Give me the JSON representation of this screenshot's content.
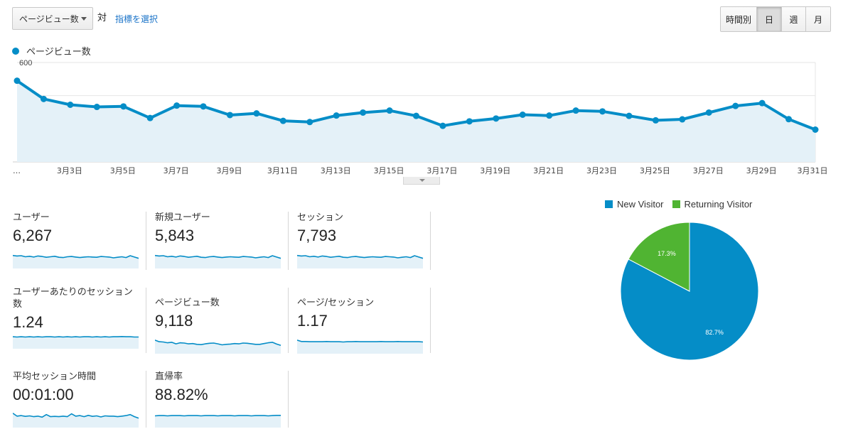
{
  "controls": {
    "metric_select": "ページビュー数",
    "vs_label": "対",
    "select_metric_link": "指標を選択",
    "granularity": [
      {
        "label": "時間別",
        "active": false
      },
      {
        "label": "日",
        "active": true
      },
      {
        "label": "週",
        "active": false
      },
      {
        "label": "月",
        "active": false
      }
    ]
  },
  "legend": {
    "label": "ページビュー数",
    "color": "#058dc7"
  },
  "chart_data": [
    {
      "type": "area",
      "series": [
        {
          "name": "ページビュー数",
          "color": "#058dc7",
          "values": [
            490,
            380,
            345,
            332,
            335,
            265,
            340,
            335,
            283,
            293,
            248,
            241,
            280,
            298,
            310,
            278,
            218,
            245,
            262,
            285,
            280,
            310,
            305,
            278,
            251,
            257,
            298,
            338,
            355,
            258,
            195
          ]
        }
      ],
      "x": [
        "3月1日",
        "3月2日",
        "3月3日",
        "3月4日",
        "3月5日",
        "3月6日",
        "3月7日",
        "3月8日",
        "3月9日",
        "3月10日",
        "3月11日",
        "3月12日",
        "3月13日",
        "3月14日",
        "3月15日",
        "3月16日",
        "3月17日",
        "3月18日",
        "3月19日",
        "3月20日",
        "3月21日",
        "3月22日",
        "3月23日",
        "3月24日",
        "3月25日",
        "3月26日",
        "3月27日",
        "3月28日",
        "3月29日",
        "3月30日",
        "3月31日"
      ],
      "x_tick_labels": [
        "…",
        "3月3日",
        "3月5日",
        "3月7日",
        "3月9日",
        "3月11日",
        "3月13日",
        "3月15日",
        "3月17日",
        "3月19日",
        "3月21日",
        "3月23日",
        "3月25日",
        "3月27日",
        "3月29日",
        "3月31日"
      ],
      "y_ticks": [
        "600",
        "400",
        "200"
      ],
      "ylim": [
        0,
        600
      ],
      "grid": true
    },
    {
      "type": "pie",
      "categories": [
        "New Visitor",
        "Returning Visitor"
      ],
      "values": [
        82.7,
        17.3
      ],
      "labels": [
        "82.7%",
        "17.3%"
      ],
      "colors": [
        "#058dc7",
        "#50b432"
      ]
    }
  ],
  "metrics": [
    {
      "label": "ユーザー",
      "value": "6,267",
      "spark": [
        50,
        48,
        49,
        45,
        47,
        44,
        48,
        46,
        43,
        45,
        47,
        43,
        42,
        45,
        46,
        44,
        42,
        44,
        45,
        44,
        43,
        46,
        45,
        44,
        41,
        43,
        45,
        42,
        49,
        44,
        39
      ]
    },
    {
      "label": "新規ユーザー",
      "value": "5,843",
      "spark": [
        50,
        48,
        49,
        45,
        47,
        44,
        48,
        46,
        43,
        45,
        47,
        43,
        42,
        45,
        46,
        44,
        42,
        44,
        45,
        44,
        43,
        46,
        45,
        44,
        41,
        43,
        45,
        42,
        49,
        44,
        39
      ]
    },
    {
      "label": "セッション",
      "value": "7,793",
      "spark": [
        50,
        48,
        49,
        45,
        47,
        44,
        48,
        46,
        43,
        45,
        47,
        43,
        42,
        45,
        46,
        44,
        42,
        44,
        45,
        44,
        43,
        46,
        45,
        44,
        41,
        43,
        45,
        42,
        49,
        44,
        39
      ]
    },
    {
      "label": "ユーザーあたりのセッション数",
      "value": "1.24",
      "spark": [
        46,
        45,
        46,
        45,
        46,
        45,
        46,
        45,
        46,
        46,
        45,
        46,
        45,
        46,
        45,
        46,
        45,
        46,
        46,
        45,
        46,
        45,
        46,
        45,
        46,
        46,
        47,
        46,
        46,
        45,
        45
      ]
    },
    {
      "label": "ページビュー数",
      "value": "9,118",
      "spark": [
        52,
        46,
        45,
        42,
        44,
        38,
        42,
        41,
        38,
        39,
        36,
        35,
        38,
        40,
        41,
        38,
        34,
        36,
        37,
        39,
        38,
        41,
        40,
        38,
        36,
        36,
        39,
        42,
        44,
        37,
        32
      ]
    },
    {
      "label": "ページ/セッション",
      "value": "1.17",
      "spark": [
        52,
        47,
        47,
        46,
        46,
        46,
        46,
        47,
        46,
        46,
        46,
        45,
        46,
        46,
        47,
        46,
        46,
        46,
        46,
        46,
        47,
        46,
        46,
        46,
        47,
        46,
        46,
        46,
        46,
        46,
        45
      ]
    },
    {
      "label": "平均セッション時間",
      "value": "00:01:00",
      "spark": [
        55,
        44,
        46,
        43,
        45,
        42,
        44,
        40,
        50,
        42,
        43,
        42,
        44,
        42,
        53,
        44,
        46,
        42,
        47,
        43,
        45,
        41,
        45,
        44,
        44,
        42,
        44,
        46,
        50,
        42,
        36
      ]
    },
    {
      "label": "直帰率",
      "value": "88.82%",
      "spark": [
        45,
        46,
        46,
        45,
        46,
        46,
        46,
        45,
        46,
        46,
        46,
        45,
        46,
        46,
        46,
        45,
        46,
        46,
        46,
        45,
        46,
        46,
        46,
        45,
        46,
        46,
        46,
        45,
        46,
        47,
        47
      ]
    }
  ]
}
